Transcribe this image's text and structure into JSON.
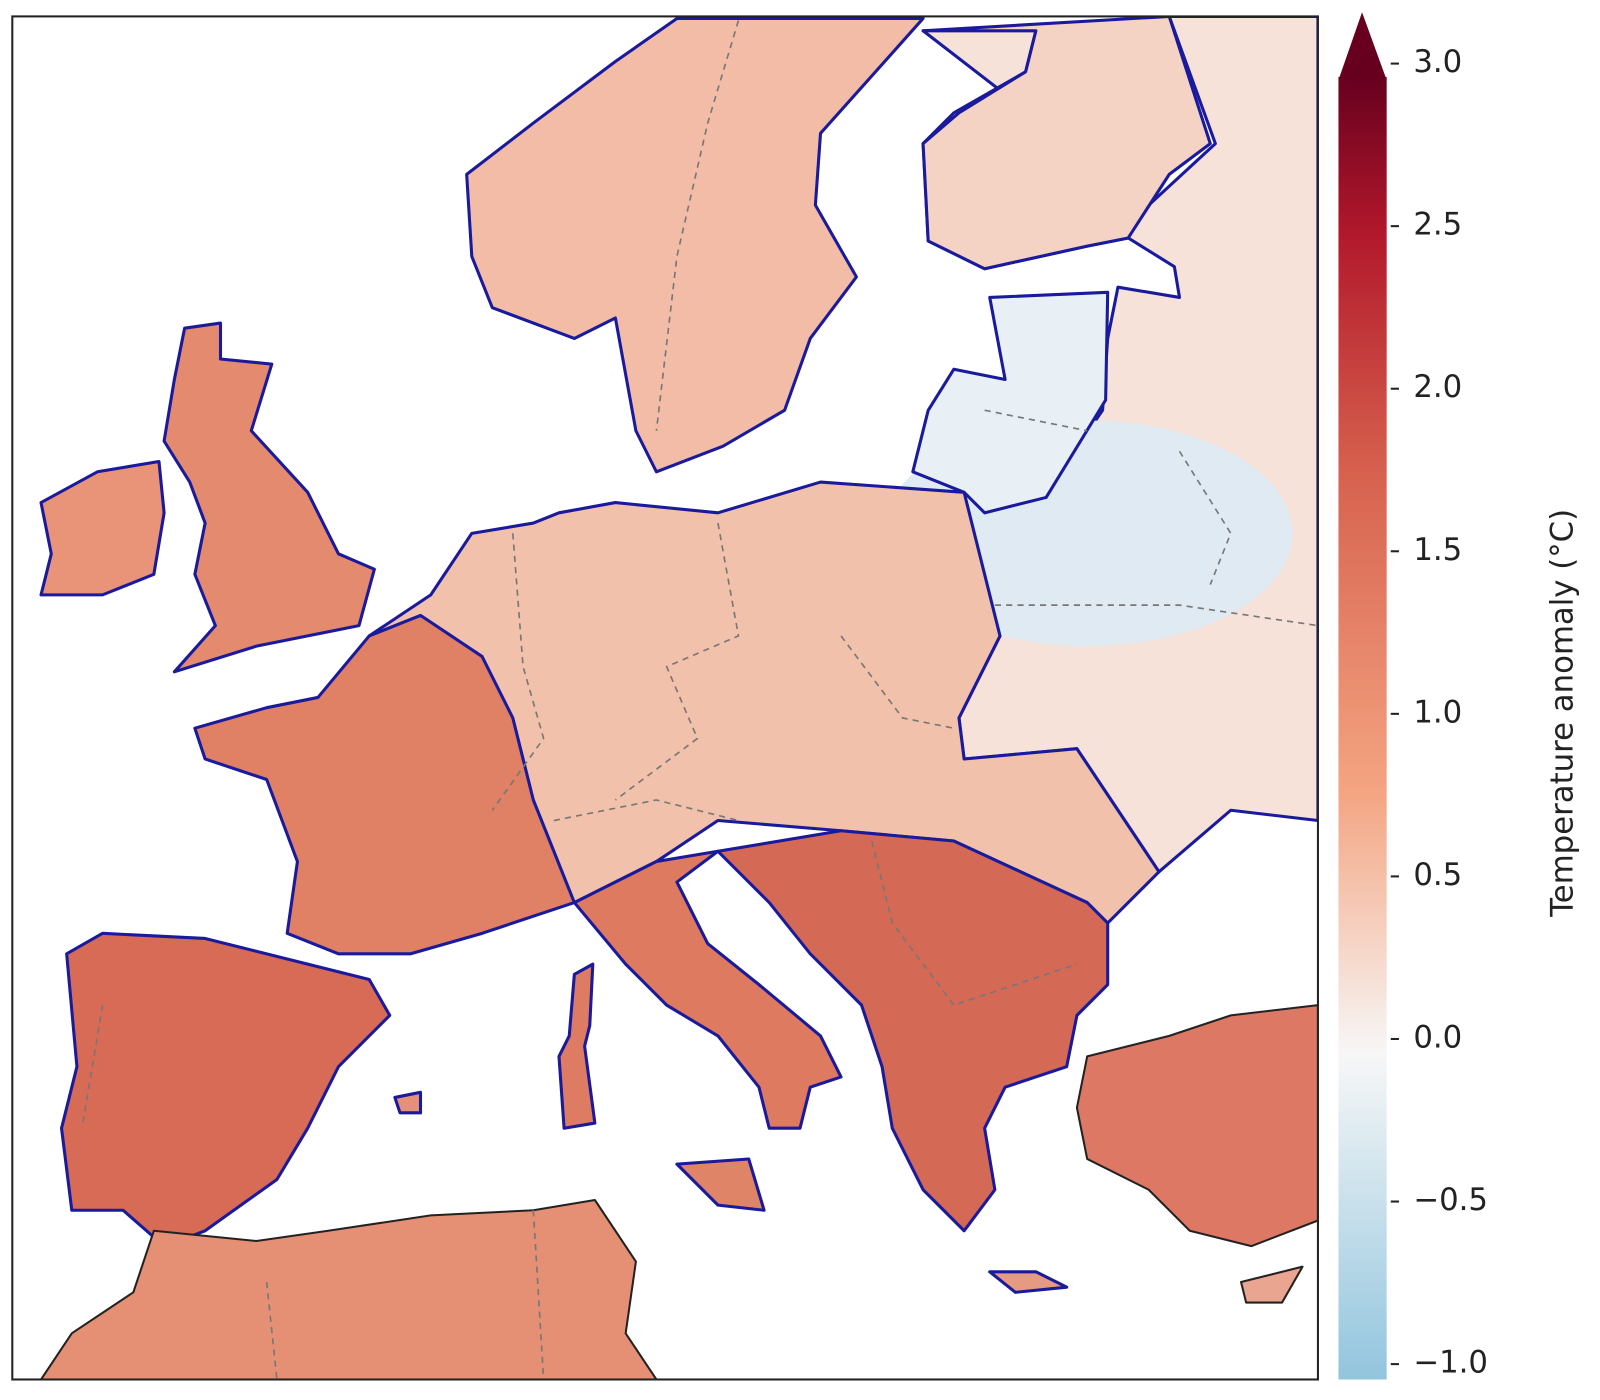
{
  "colorbar": {
    "label": "Temperature anomaly (°C)",
    "lim": [
      -1,
      3
    ],
    "extend": "max",
    "ticks": [
      {
        "value": -1,
        "label": "−1.0"
      },
      {
        "value": -0.5,
        "label": "−0.5"
      },
      {
        "value": 0,
        "label": "0.0"
      },
      0.5,
      {
        "value": 1,
        "label": "1.0"
      },
      1.5,
      {
        "value": 2,
        "label": "2.0"
      },
      2.5,
      {
        "value": 3,
        "label": "3.0"
      }
    ]
  }
}
